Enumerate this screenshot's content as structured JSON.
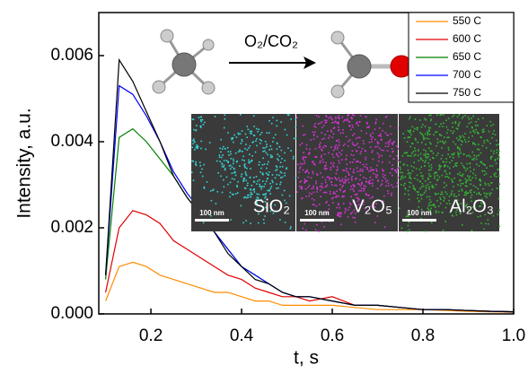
{
  "chart_data": {
    "type": "line",
    "xlabel": "t, s",
    "ylabel": "Intensity, a.u.",
    "annotations": {
      "reaction": "O₂/CO₂",
      "insets": [
        {
          "label": "SiO₂",
          "scale": "100 nm",
          "color": "#33d6d6"
        },
        {
          "label": "V₂O₅",
          "scale": "100 nm",
          "color": "#d633d6"
        },
        {
          "label": "Al₂O₃",
          "scale": "100 nm",
          "color": "#33b833"
        }
      ]
    },
    "xlim": [
      0.085,
      1.0
    ],
    "ylim": [
      0,
      0.007
    ],
    "xticks": [
      0.2,
      0.4,
      0.6,
      0.8,
      {
        "value": 1,
        "label": "1.0"
      }
    ],
    "yticks": [
      {
        "value": 0,
        "label": "0.000"
      },
      {
        "value": 0.002,
        "label": "0.002"
      },
      {
        "value": 0.004,
        "label": "0.004"
      },
      {
        "value": 0.006,
        "label": "0.006"
      }
    ],
    "legend_position": "upper right",
    "x": [
      0.1,
      0.13,
      0.16,
      0.19,
      0.22,
      0.25,
      0.28,
      0.31,
      0.34,
      0.37,
      0.4,
      0.43,
      0.46,
      0.49,
      0.52,
      0.55,
      0.6,
      0.65,
      0.7,
      0.75,
      0.8,
      0.85,
      0.9,
      0.95,
      1.0
    ],
    "series": [
      {
        "name": "550 C",
        "color": "#ff8c00",
        "values": [
          0.0003,
          0.0011,
          0.0012,
          0.0011,
          0.0009,
          0.0008,
          0.0007,
          0.0006,
          0.0005,
          0.0005,
          0.0004,
          0.0003,
          0.0003,
          0.0002,
          0.0002,
          0.0002,
          0.0002,
          0.00015,
          0.0001,
          0.0001,
          0.0001,
          8e-05,
          6e-05,
          5e-05,
          4e-05
        ]
      },
      {
        "name": "600 C",
        "color": "#e00000",
        "values": [
          0.0005,
          0.002,
          0.0024,
          0.0023,
          0.0021,
          0.0017,
          0.0015,
          0.0013,
          0.0011,
          0.0009,
          0.0008,
          0.0006,
          0.0005,
          0.0004,
          0.0004,
          0.0003,
          0.0004,
          0.0002,
          0.0002,
          0.00015,
          0.0001,
          0.0001,
          8e-05,
          6e-05,
          5e-05
        ]
      },
      {
        "name": "650 C",
        "color": "#008000",
        "values": [
          0.0008,
          0.0041,
          0.0043,
          0.004,
          0.0036,
          0.0032,
          0.0027,
          0.0023,
          0.0019,
          0.0015,
          0.0011,
          0.0009,
          0.0007,
          0.0005,
          0.0004,
          0.0004,
          0.0003,
          0.0002,
          0.0002,
          0.00015,
          0.0001,
          0.0001,
          8e-05,
          6e-05,
          5e-05
        ]
      },
      {
        "name": "700 C",
        "color": "#0000ff",
        "values": [
          0.0009,
          0.0053,
          0.0051,
          0.0046,
          0.004,
          0.0033,
          0.0028,
          0.0024,
          0.0019,
          0.0015,
          0.0011,
          0.0009,
          0.0007,
          0.0005,
          0.0004,
          0.0004,
          0.0003,
          0.0002,
          0.0002,
          0.00015,
          0.0001,
          0.0001,
          8e-05,
          6e-05,
          5e-05
        ]
      },
      {
        "name": "750 C",
        "color": "#000000",
        "values": [
          0.0009,
          0.0059,
          0.0054,
          0.0047,
          0.004,
          0.0032,
          0.0027,
          0.0023,
          0.0019,
          0.0014,
          0.0011,
          0.0008,
          0.0007,
          0.0005,
          0.0004,
          0.0004,
          0.0003,
          0.0002,
          0.0002,
          0.00015,
          0.0001,
          0.0001,
          8e-05,
          6e-05,
          5e-05
        ]
      }
    ]
  }
}
